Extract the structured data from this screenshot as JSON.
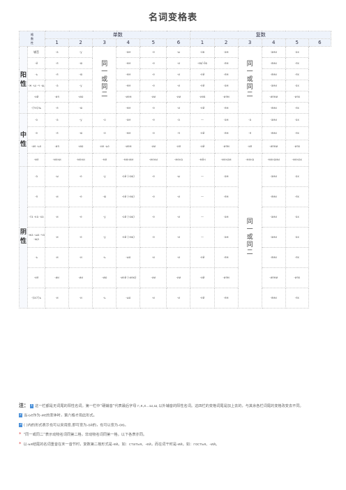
{
  "title": "名词变格表",
  "header": {
    "corner_top": "格",
    "corner_mid": "数",
    "corner_bot": "性",
    "singular": "单数",
    "plural": "复数",
    "cases": [
      "1",
      "2",
      "3",
      "4",
      "5",
      "6"
    ]
  },
  "genders": {
    "masc": "阳\n性",
    "neut": "中\n性",
    "fem": "阴\n性"
  },
  "merged": {
    "masc_sg4": "同\n一\n或\n同\n二",
    "masc_pl4": "同\n一\n或\n同\n二",
    "fem_pl4": "同\n一\n或\n同\n二"
  },
  "masc_rows": [
    [
      "辅音 ",
      "-а",
      "-у",
      "",
      "-ом",
      "-е",
      "-ы",
      "-ов",
      "-ам",
      "",
      "-ами",
      "-ах"
    ],
    [
      "-й",
      "-я",
      "-ю",
      "",
      "-ем",
      "-е",
      "-и",
      "-ев/-ёв",
      "-ям",
      "",
      "-ями",
      "-ях"
    ],
    [
      "-ь",
      "-я",
      "-ю",
      "",
      "-ем",
      "-е",
      "-и",
      "-ей",
      "-ям",
      "",
      "-ями",
      "-ях"
    ],
    [
      "-ж -ш -ч -щ",
      "-а",
      "-у",
      "",
      "-ем",
      "-е",
      "-и",
      "-ей",
      "-ам",
      "",
      "-ами",
      "-ах"
    ],
    [
      "-ий",
      "-ия",
      "-ию",
      "",
      "-ием",
      "-ии",
      "-ии",
      "-иев",
      "-иям",
      "",
      "-иями",
      "-иях"
    ],
    [
      "-(те)ль",
      "-я",
      "-ю",
      "",
      "-ем",
      "-е",
      "-и",
      "-ей",
      "-ям",
      "",
      "-ями",
      "-ях"
    ]
  ],
  "neut_rows": [
    [
      "-о",
      "-а",
      "-у",
      "-о",
      "-ом",
      "-е",
      "-а",
      "—",
      "-ам",
      "-а",
      "-ами",
      "-ах"
    ],
    [
      "-е",
      "-я",
      "-ю",
      "-е",
      "-ем",
      "-е",
      "-я",
      "-ей",
      "-ям",
      "-я",
      "-ями",
      "-ях"
    ],
    [
      "-ие -ье",
      "-ия",
      "-ию",
      "-ие -ье",
      "-ием",
      "-ии",
      "-ия",
      "-ий",
      "-иям",
      "-ия",
      "-иями",
      "-иях"
    ],
    [
      "-мя",
      "-мени",
      "-мени",
      "-мя",
      "-менем",
      "-мени",
      "-мена",
      "-мён",
      "-менам",
      "-мена",
      "-менами",
      "-менах"
    ]
  ],
  "fem_rows": [
    [
      "-а",
      "-ы",
      "-е",
      "-у",
      "-ой (-ою)",
      "-е",
      "-ы",
      "—",
      "-ам",
      "",
      "-ами",
      "-ах"
    ],
    [
      "-я",
      "-и",
      "-е",
      "-ю",
      "-ей (-ею)",
      "-е",
      "-и",
      "—",
      "-ям",
      "",
      "-ями",
      "-ях"
    ],
    [
      "-га -ка -ха",
      "-и",
      "-е",
      "-у",
      "-ой (-ою)",
      "-е",
      "-и",
      "—",
      "-ам",
      "",
      "-ами",
      "-ах"
    ],
    [
      "-жа -ша -ча -ща",
      "-и",
      "-е",
      "-у",
      "-ей (-ею)",
      "-е",
      "-и",
      "—",
      "-ам",
      "",
      "-ами",
      "-ах"
    ],
    [
      "-ь",
      "-и",
      "-и",
      "-ь",
      "-ью",
      "-и",
      "-и",
      "-ей",
      "-ям",
      "",
      "-ями",
      "-ях"
    ],
    [
      "-ия",
      "-ии",
      "-ии",
      "-ию",
      "-ией (-иею)",
      "-ии",
      "-ии",
      "-ий",
      "-иям",
      "",
      "-иями",
      "-иях"
    ],
    [
      "-(ост)ь",
      "-и",
      "-и",
      "-ь",
      "-ью",
      "-и",
      "-и",
      "-ей",
      "-ям",
      "",
      "-ями",
      "-ях"
    ]
  ],
  "notes": {
    "head": "注：",
    "n1": "这一栏都是无词尾的阳性名词。第一栏中“硬辅音”代表最后字母 г,к,х...ш,щ 以外辅音的阳性名词。这四栏的变格词尾是加上去的，与其余各栏词尾的变格改变去不同。",
    "n2": "当-ье作为-ие的变体时，第六格才用此形式。",
    "n3": "( )内的形式表示也可以采用变,即可变为-ой的，也可以变为-ою。",
    "n4": "“同一或同二”表示动物名词同第二格，非动物名词同第一格。以下各表亦同。",
    "n5": "以-ья结尾的名词重音在末一音节时，复数第二格形式是-ей。如：статья、-ей，而在词干时是-ий。如：гостья、-ий。"
  }
}
